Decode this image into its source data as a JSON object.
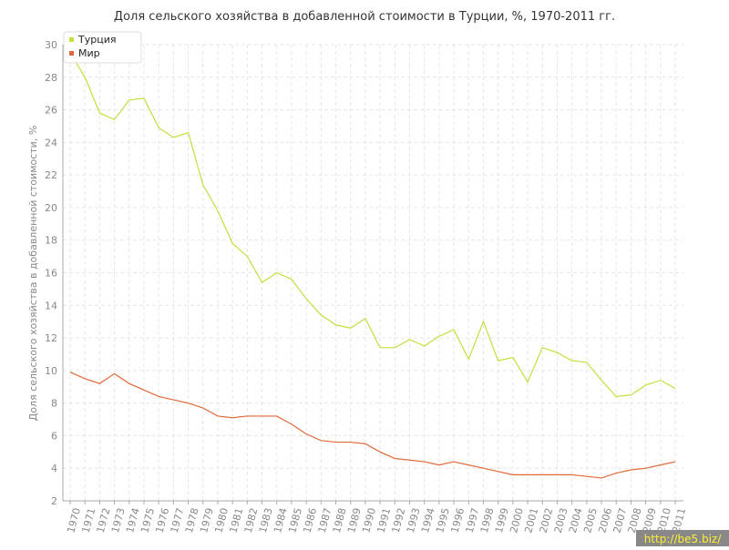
{
  "chart_data": {
    "type": "line",
    "title": "Доля сельского хозяйства в добавленной стоимости в Турции, %, 1970-2011 гг.",
    "y_label": "Доля сельского хозяйства в добавленной стоимости, %",
    "categories": [
      "1970",
      "1971",
      "1972",
      "1973",
      "1974",
      "1975",
      "1976",
      "1977",
      "1978",
      "1979",
      "1980",
      "1981",
      "1982",
      "1983",
      "1984",
      "1985",
      "1986",
      "1987",
      "1988",
      "1989",
      "1990",
      "1991",
      "1992",
      "1993",
      "1994",
      "1995",
      "1996",
      "1997",
      "1998",
      "1999",
      "2000",
      "2001",
      "2002",
      "2003",
      "2004",
      "2005",
      "2006",
      "2007",
      "2008",
      "2009",
      "2010",
      "2011"
    ],
    "series": [
      {
        "name": "Турция",
        "color": "#c5dd3f",
        "values": [
          29.5,
          28.0,
          25.8,
          25.4,
          26.6,
          26.7,
          24.9,
          24.3,
          24.6,
          21.4,
          19.8,
          17.8,
          17.0,
          15.4,
          16.0,
          15.6,
          14.4,
          13.4,
          12.8,
          12.6,
          13.2,
          11.4,
          11.4,
          11.9,
          11.5,
          12.1,
          12.5,
          10.7,
          13.0,
          10.6,
          10.8,
          9.3,
          11.4,
          11.1,
          10.6,
          10.5,
          9.4,
          8.4,
          8.5,
          9.1,
          9.4,
          8.9
        ]
      },
      {
        "name": "Мир",
        "color": "#e0693a",
        "values": [
          9.9,
          9.5,
          9.2,
          9.8,
          9.2,
          8.8,
          8.4,
          8.2,
          8.0,
          7.7,
          7.2,
          7.1,
          7.2,
          7.2,
          7.2,
          6.7,
          6.1,
          5.7,
          5.6,
          5.6,
          5.5,
          5.0,
          4.6,
          4.5,
          4.4,
          4.2,
          4.4,
          4.2,
          4.0,
          3.8,
          3.6,
          3.6,
          3.6,
          3.6,
          3.6,
          3.5,
          3.4,
          3.7,
          3.9,
          4.0,
          4.2,
          4.4
        ]
      }
    ],
    "ylim": [
      2,
      30
    ],
    "yticks": [
      2,
      4,
      6,
      8,
      10,
      12,
      14,
      16,
      18,
      20,
      22,
      24,
      26,
      28,
      30
    ],
    "grid": true,
    "legend": "top-left",
    "watermark": "http://be5.biz/"
  }
}
